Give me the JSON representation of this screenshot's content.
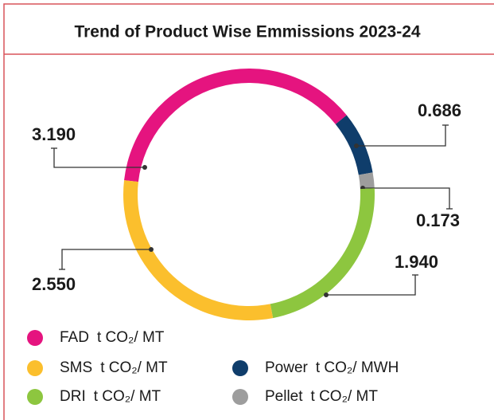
{
  "chart_data": {
    "type": "donut",
    "title": "Trend of Product Wise Emmissions 2023-24",
    "categories": [
      "FAD",
      "Power",
      "Pellet",
      "DRI",
      "SMS"
    ],
    "units": [
      "t CO₂/ MT",
      "t CO₂/ MWH",
      "t CO₂/ MT",
      "t CO₂/ MT",
      "t CO₂/ MT"
    ],
    "values": [
      3.19,
      0.686,
      0.173,
      1.94,
      2.55
    ],
    "value_labels": [
      "3.190",
      "0.686",
      "0.173",
      "1.940",
      "2.550"
    ],
    "colors": [
      "#e5147f",
      "#0f3d6b",
      "#9d9d9d",
      "#8dc63f",
      "#fbbf2d"
    ]
  }
}
